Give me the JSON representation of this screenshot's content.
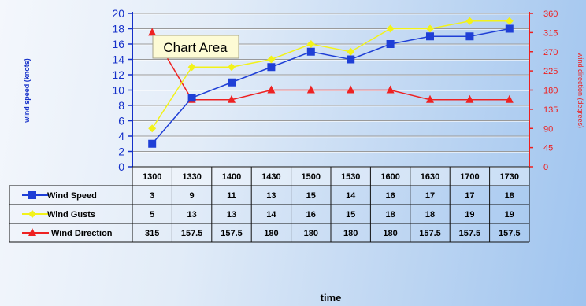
{
  "chart_data": {
    "type": "line",
    "categories": [
      "1300",
      "1330",
      "1400",
      "1430",
      "1500",
      "1530",
      "1600",
      "1630",
      "1700",
      "1730"
    ],
    "series": [
      {
        "name": "Wind Speed",
        "axis": "left",
        "color": "#1f3fd6",
        "marker": "square",
        "values": [
          3,
          9,
          11,
          13,
          15,
          14,
          16,
          17,
          17,
          18
        ],
        "labels": [
          "3",
          "9",
          "11",
          "13",
          "15",
          "14",
          "16",
          "17",
          "17",
          "18"
        ]
      },
      {
        "name": "Wind Gusts",
        "axis": "left",
        "color": "#f2f21a",
        "marker": "diamond",
        "values": [
          5,
          13,
          13,
          14,
          16,
          15,
          18,
          18,
          19,
          19
        ],
        "labels": [
          "5",
          "13",
          "13",
          "14",
          "16",
          "15",
          "18",
          "18",
          "19",
          "19"
        ]
      },
      {
        "name": "Wind Direction",
        "axis": "right",
        "color": "#ee2222",
        "marker": "triangle",
        "values": [
          315,
          157.5,
          157.5,
          180,
          180,
          180,
          180,
          157.5,
          157.5,
          157.5
        ],
        "labels": [
          "315",
          "157.5",
          "157.5",
          "180",
          "180",
          "180",
          "180",
          "157.5",
          "157.5",
          "157.5"
        ]
      }
    ],
    "y_left": {
      "label": "wind speed (knots)",
      "range": [
        0,
        20
      ],
      "ticks": [
        "0",
        "2",
        "4",
        "6",
        "8",
        "10",
        "12",
        "14",
        "16",
        "18",
        "20"
      ]
    },
    "y_right": {
      "label": "wind direction (degrees)",
      "range": [
        0,
        360
      ],
      "ticks": [
        "0",
        "45",
        "90",
        "135",
        "180",
        "225",
        "270",
        "315",
        "360"
      ]
    },
    "xlabel": "time",
    "grid": true,
    "legend": "data-table",
    "tooltip": "Chart Area"
  }
}
